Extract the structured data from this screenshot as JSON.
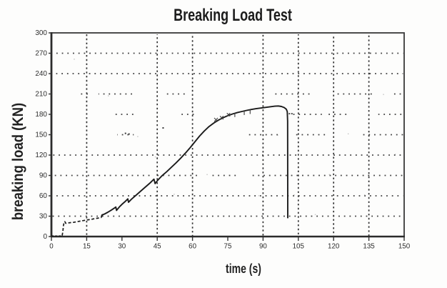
{
  "chart_data": {
    "type": "line",
    "title": "Breaking Load Test",
    "xlabel": "time (s)",
    "ylabel": "breaking load (KN)",
    "xlim": [
      0,
      150
    ],
    "ylim": [
      0,
      300
    ],
    "x_ticks": [
      0,
      15,
      30,
      45,
      60,
      75,
      90,
      105,
      120,
      135,
      150
    ],
    "y_ticks": [
      0,
      30,
      60,
      90,
      120,
      150,
      180,
      210,
      240,
      270,
      300
    ],
    "grid": {
      "style": "dotted",
      "vertical_lines_at_x": [
        15,
        45,
        60,
        90,
        105,
        120,
        135
      ],
      "horizontal_lines": [
        {
          "y": 30,
          "segments": [
            [
              0.5,
              149.5
            ]
          ]
        },
        {
          "y": 60,
          "segments": [
            [
              0.5,
              149.5
            ]
          ]
        },
        {
          "y": 90,
          "segments": [
            [
              0.5,
              43
            ],
            [
              45,
              62
            ],
            [
              67,
              79
            ],
            [
              85,
              149.5
            ]
          ]
        },
        {
          "y": 120,
          "segments": [
            [
              0.5,
              149.5
            ]
          ]
        },
        {
          "y": 150,
          "segments": [
            [
              28,
              35
            ],
            [
              83,
              97
            ],
            [
              104,
              118
            ],
            [
              131,
              149.5
            ]
          ]
        },
        {
          "y": 180,
          "segments": [
            [
              26,
              36
            ],
            [
              55,
              62
            ],
            [
              101,
              115
            ],
            [
              117,
              127
            ],
            [
              139,
              149.5
            ]
          ]
        },
        {
          "y": 210,
          "segments": [
            [
              12,
              16
            ],
            [
              20,
              36
            ],
            [
              48,
              58
            ],
            [
              95,
              111
            ],
            [
              120,
              138
            ],
            [
              145,
              149.5
            ]
          ]
        },
        {
          "y": 240,
          "segments": [
            [
              2,
              149.5
            ]
          ]
        },
        {
          "y": 270,
          "segments": [
            [
              0.5,
              149.5
            ]
          ]
        }
      ]
    },
    "series": [
      {
        "name": "breaking load curve",
        "color": "#1b1b1b",
        "segments": [
          {
            "dash": "3 2.2",
            "width": 1.5,
            "points": [
              [
                0,
                1
              ],
              [
                2,
                0.8
              ],
              [
                4,
                1
              ],
              [
                4.6,
                1.5
              ]
            ]
          },
          {
            "dash": "4 2.6",
            "width": 1.7,
            "points": [
              [
                4.6,
                1.5
              ],
              [
                4.9,
                8
              ],
              [
                5.1,
                16
              ],
              [
                5.4,
                21
              ],
              [
                5.7,
                22
              ],
              [
                6.1,
                19.5
              ],
              [
                7,
                20
              ],
              [
                8.2,
                20.5
              ],
              [
                9.5,
                21
              ],
              [
                11,
                22
              ],
              [
                12.5,
                22.8
              ],
              [
                14,
                23.8
              ],
              [
                15.5,
                24.6
              ],
              [
                17,
                25.4
              ],
              [
                18.5,
                26.4
              ],
              [
                20,
                27.3
              ],
              [
                21.2,
                28
              ]
            ]
          },
          {
            "dash": "",
            "width": 1.9,
            "points": [
              [
                21.2,
                28
              ],
              [
                21.5,
                31.8
              ],
              [
                22.5,
                33
              ],
              [
                24,
                35.8
              ],
              [
                25.5,
                39
              ],
              [
                26.8,
                42
              ],
              [
                27.4,
                43.5
              ],
              [
                27.7,
                38.5
              ],
              [
                29,
                44
              ],
              [
                30,
                47.5
              ],
              [
                31.5,
                52
              ],
              [
                32.5,
                55.5
              ],
              [
                32.8,
                50.5
              ],
              [
                34,
                55
              ],
              [
                36,
                61
              ],
              [
                38,
                67
              ],
              [
                40,
                73
              ],
              [
                42,
                79
              ],
              [
                43.6,
                84.5
              ],
              [
                44.1,
                78
              ],
              [
                45.5,
                84
              ],
              [
                47,
                89.5
              ],
              [
                49,
                95.5
              ],
              [
                51,
                102
              ],
              [
                53,
                108.5
              ],
              [
                55,
                115.5
              ],
              [
                57,
                123
              ],
              [
                59,
                131
              ],
              [
                61,
                139.5
              ],
              [
                63,
                148
              ],
              [
                65,
                155.5
              ],
              [
                67,
                162
              ],
              [
                69,
                167
              ],
              [
                71,
                171.5
              ],
              [
                73,
                175
              ],
              [
                75,
                178
              ],
              [
                77,
                180.5
              ],
              [
                79,
                182.5
              ],
              [
                81,
                184.2
              ],
              [
                83,
                185.8
              ],
              [
                85,
                187.2
              ],
              [
                87,
                188.3
              ],
              [
                89,
                189.3
              ],
              [
                91,
                190.2
              ],
              [
                93,
                191.2
              ],
              [
                95,
                192
              ],
              [
                96.5,
                192.3
              ],
              [
                97.8,
                191.6
              ],
              [
                99,
                190
              ],
              [
                99.9,
                187.5
              ],
              [
                100.3,
                184
              ],
              [
                100.45,
                170
              ],
              [
                100.5,
                27
              ]
            ]
          }
        ]
      }
    ],
    "annotations": {
      "noise_marks": [
        {
          "type": "dash",
          "x1": 100.9,
          "y1": 181,
          "x2": 102.8,
          "y2": 181
        },
        {
          "type": "cross",
          "x": 70.0,
          "y": 172,
          "size": 1.6
        },
        {
          "type": "cross",
          "x": 72.4,
          "y": 175,
          "size": 1.5
        },
        {
          "type": "cross",
          "x": 75.3,
          "y": 179.5,
          "size": 1.4
        },
        {
          "type": "vdash",
          "x": 78.0,
          "y1": 176,
          "y2": 182
        },
        {
          "type": "vdash",
          "x": 82.0,
          "y1": 179,
          "y2": 186
        },
        {
          "type": "vdash",
          "x": 84.5,
          "y1": 180.5,
          "y2": 187
        },
        {
          "type": "dot",
          "x": 31.5,
          "y": 152
        },
        {
          "type": "dot",
          "x": 33.0,
          "y": 151
        },
        {
          "type": "dot",
          "x": 47.5,
          "y": 160
        }
      ],
      "speckles": [
        [
          9.5,
          262
        ],
        [
          24,
          208
        ],
        [
          36.5,
          148
        ],
        [
          44,
          118
        ],
        [
          52,
          63
        ],
        [
          66,
          92
        ],
        [
          71,
          120
        ],
        [
          88,
          61
        ],
        [
          96,
          150
        ],
        [
          103,
          62
        ],
        [
          112,
          33
        ],
        [
          118,
          92
        ],
        [
          126,
          152
        ],
        [
          133,
          62
        ],
        [
          141,
          210
        ],
        [
          146,
          122
        ]
      ]
    },
    "ink_color": "#2f2f2f",
    "background": "#fdfdfc"
  }
}
